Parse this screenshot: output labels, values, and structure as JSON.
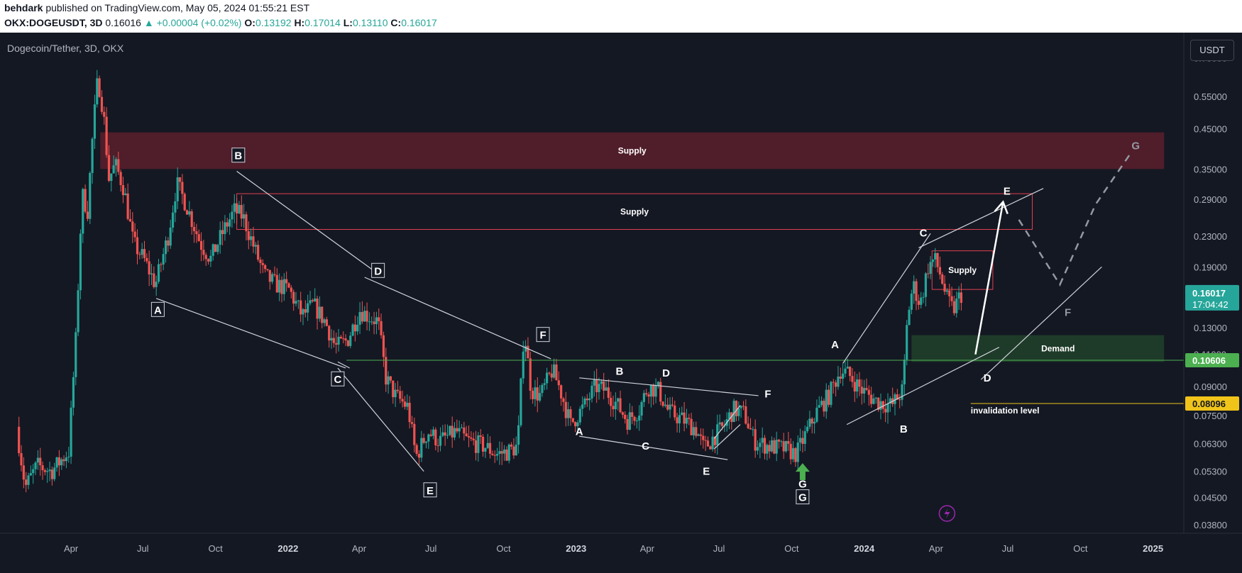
{
  "header": {
    "author": "behdark",
    "published": " published on TradingView.com, May 05, 2024 01:55:21 EST",
    "symbol": "OKX:DOGEUSDT, 3D",
    "price": "0.16016",
    "change": "▲ +0.00004 (+0.02%)",
    "o_label": "O:",
    "o_value": "0.13192",
    "h_label": "H:",
    "h_value": "0.17014",
    "l_label": "L:",
    "l_value": "0.13110",
    "c_label": "C:",
    "c_value": "0.16017"
  },
  "chart_title": "Dogecoin/Tether, 3D, OKX",
  "currency_button": "USDT",
  "colors": {
    "background": "#141823",
    "candle_up": "#26a69a",
    "candle_down": "#ef5350",
    "supply_zone": "#5a1f2b",
    "supply_border": "#e04050",
    "demand_zone": "#1f3f2a",
    "support_line": "#4caf50",
    "invalidation_line": "#f0c419",
    "price_badge": "#26a69a",
    "arrow_green": "#4caf50",
    "projection": "#9598a1"
  },
  "price_badge": {
    "price": "0.16017",
    "countdown": "17:04:42"
  },
  "level_badges": [
    {
      "value": 0.10606,
      "label": "0.10606",
      "bg": "#4caf50",
      "color": "#ffffff"
    },
    {
      "value": 0.08096,
      "label": "0.08096",
      "bg": "#f0c419",
      "color": "#131722"
    }
  ],
  "chart_data": {
    "type": "candlestick",
    "scale": "log",
    "ylim": [
      0.036,
      0.82
    ],
    "y_ticks": [
      "0.70000",
      "0.55000",
      "0.45000",
      "0.35000",
      "0.29000",
      "0.23000",
      "0.19000",
      "0.13000",
      "0.11000",
      "0.09000",
      "0.07500",
      "0.06300",
      "0.05300",
      "0.04500",
      "0.03800"
    ],
    "x_ticks": [
      {
        "label": "Apr",
        "date": "2021-04-01",
        "bold": false
      },
      {
        "label": "Jul",
        "date": "2021-07-01",
        "bold": false
      },
      {
        "label": "Oct",
        "date": "2021-10-01",
        "bold": false
      },
      {
        "label": "2022",
        "date": "2022-01-01",
        "bold": true
      },
      {
        "label": "Apr",
        "date": "2022-04-01",
        "bold": false
      },
      {
        "label": "Jul",
        "date": "2022-07-01",
        "bold": false
      },
      {
        "label": "Oct",
        "date": "2022-10-01",
        "bold": false
      },
      {
        "label": "2023",
        "date": "2023-01-01",
        "bold": true
      },
      {
        "label": "Apr",
        "date": "2023-04-01",
        "bold": false
      },
      {
        "label": "Jul",
        "date": "2023-07-01",
        "bold": false
      },
      {
        "label": "Oct",
        "date": "2023-10-01",
        "bold": false
      },
      {
        "label": "2024",
        "date": "2024-01-01",
        "bold": true
      },
      {
        "label": "Apr",
        "date": "2024-04-01",
        "bold": false
      },
      {
        "label": "Jul",
        "date": "2024-07-01",
        "bold": false
      },
      {
        "label": "Oct",
        "date": "2024-10-01",
        "bold": false
      },
      {
        "label": "2025",
        "date": "2025-01-01",
        "bold": true
      }
    ],
    "price_path": [
      [
        "2021-01-25",
        0.07
      ],
      [
        "2021-02-05",
        0.048
      ],
      [
        "2021-02-20",
        0.055
      ],
      [
        "2021-03-10",
        0.053
      ],
      [
        "2021-04-01",
        0.06
      ],
      [
        "2021-04-10",
        0.12
      ],
      [
        "2021-04-18",
        0.3
      ],
      [
        "2021-04-25",
        0.27
      ],
      [
        "2021-05-02",
        0.45
      ],
      [
        "2021-05-08",
        0.62
      ],
      [
        "2021-05-15",
        0.5
      ],
      [
        "2021-05-22",
        0.33
      ],
      [
        "2021-05-30",
        0.36
      ],
      [
        "2021-06-10",
        0.31
      ],
      [
        "2021-06-22",
        0.22
      ],
      [
        "2021-07-05",
        0.2
      ],
      [
        "2021-07-20",
        0.17
      ],
      [
        "2021-08-05",
        0.23
      ],
      [
        "2021-08-16",
        0.32
      ],
      [
        "2021-08-28",
        0.28
      ],
      [
        "2021-09-15",
        0.22
      ],
      [
        "2021-09-28",
        0.2
      ],
      [
        "2021-10-15",
        0.24
      ],
      [
        "2021-10-28",
        0.27
      ],
      [
        "2021-11-08",
        0.26
      ],
      [
        "2021-11-20",
        0.22
      ],
      [
        "2021-12-05",
        0.18
      ],
      [
        "2021-12-20",
        0.17
      ],
      [
        "2022-01-05",
        0.165
      ],
      [
        "2022-01-22",
        0.14
      ],
      [
        "2022-02-05",
        0.15
      ],
      [
        "2022-02-20",
        0.135
      ],
      [
        "2022-03-05",
        0.115
      ],
      [
        "2022-03-20",
        0.12
      ],
      [
        "2022-04-05",
        0.145
      ],
      [
        "2022-04-15",
        0.14
      ],
      [
        "2022-04-28",
        0.135
      ],
      [
        "2022-05-08",
        0.095
      ],
      [
        "2022-05-20",
        0.085
      ],
      [
        "2022-06-05",
        0.079
      ],
      [
        "2022-06-15",
        0.058
      ],
      [
        "2022-06-30",
        0.068
      ],
      [
        "2022-07-15",
        0.064
      ],
      [
        "2022-08-05",
        0.068
      ],
      [
        "2022-08-20",
        0.064
      ],
      [
        "2022-09-10",
        0.062
      ],
      [
        "2022-09-25",
        0.059
      ],
      [
        "2022-10-10",
        0.06
      ],
      [
        "2022-10-22",
        0.062
      ],
      [
        "2022-10-30",
        0.13
      ],
      [
        "2022-11-08",
        0.088
      ],
      [
        "2022-11-20",
        0.085
      ],
      [
        "2022-12-05",
        0.1
      ],
      [
        "2022-12-15",
        0.088
      ],
      [
        "2022-12-28",
        0.071
      ],
      [
        "2023-01-15",
        0.08
      ],
      [
        "2023-01-28",
        0.09
      ],
      [
        "2023-02-10",
        0.088
      ],
      [
        "2023-02-22",
        0.082
      ],
      [
        "2023-03-10",
        0.073
      ],
      [
        "2023-03-25",
        0.078
      ],
      [
        "2023-04-05",
        0.09
      ],
      [
        "2023-04-18",
        0.088
      ],
      [
        "2023-05-01",
        0.077
      ],
      [
        "2023-05-20",
        0.073
      ],
      [
        "2023-06-05",
        0.069
      ],
      [
        "2023-06-15",
        0.061
      ],
      [
        "2023-06-28",
        0.066
      ],
      [
        "2023-07-10",
        0.07
      ],
      [
        "2023-07-22",
        0.078
      ],
      [
        "2023-08-05",
        0.076
      ],
      [
        "2023-08-18",
        0.064
      ],
      [
        "2023-09-05",
        0.062
      ],
      [
        "2023-09-25",
        0.061
      ],
      [
        "2023-10-10",
        0.059
      ],
      [
        "2023-10-22",
        0.067
      ],
      [
        "2023-11-05",
        0.077
      ],
      [
        "2023-11-20",
        0.085
      ],
      [
        "2023-12-05",
        0.1
      ],
      [
        "2023-12-15",
        0.097
      ],
      [
        "2024-01-01",
        0.088
      ],
      [
        "2024-01-20",
        0.082
      ],
      [
        "2024-02-08",
        0.08
      ],
      [
        "2024-02-22",
        0.088
      ],
      [
        "2024-02-28",
        0.14
      ],
      [
        "2024-03-06",
        0.17
      ],
      [
        "2024-03-15",
        0.15
      ],
      [
        "2024-03-25",
        0.19
      ],
      [
        "2024-04-02",
        0.2
      ],
      [
        "2024-04-10",
        0.18
      ],
      [
        "2024-04-18",
        0.155
      ],
      [
        "2024-04-26",
        0.145
      ],
      [
        "2024-05-05",
        0.16
      ]
    ],
    "zones": [
      {
        "type": "supply",
        "label": "Supply",
        "from": "2021-05-08",
        "to": "2025-01-15",
        "low": 0.35,
        "high": 0.44,
        "fill": "#5a1f2b",
        "stroke": "none",
        "opacity": 0.85
      },
      {
        "type": "supply",
        "label": "Supply",
        "from": "2021-10-28",
        "to": "2024-08-01",
        "low": 0.24,
        "high": 0.3,
        "fill": "none",
        "stroke": "#e04050",
        "opacity": 1
      },
      {
        "type": "supply",
        "label": "Supply",
        "from": "2024-03-27",
        "to": "2024-06-12",
        "low": 0.165,
        "high": 0.21,
        "fill": "none",
        "stroke": "#e04050",
        "opacity": 1
      },
      {
        "type": "demand",
        "label": "Demand",
        "from": "2024-03-01",
        "to": "2025-01-15",
        "low": 0.105,
        "high": 0.124,
        "fill": "#1f3f2a",
        "stroke": "none",
        "opacity": 0.9
      }
    ],
    "levels": [
      {
        "value": 0.10606,
        "label": "",
        "color": "#4caf50",
        "from": "2022-03-16"
      },
      {
        "value": 0.08096,
        "label": "invalidation level",
        "color": "#f0c419",
        "from": "2024-05-15"
      }
    ],
    "wave_labels": [
      {
        "text": "B",
        "date": "2021-10-30",
        "price": 0.38,
        "boxed": true
      },
      {
        "text": "A",
        "date": "2021-07-20",
        "price": 0.145,
        "boxed": true
      },
      {
        "text": "D",
        "date": "2022-04-25",
        "price": 0.185,
        "boxed": true
      },
      {
        "text": "C",
        "date": "2022-03-05",
        "price": 0.094,
        "boxed": true
      },
      {
        "text": "E",
        "date": "2022-06-30",
        "price": 0.047,
        "boxed": true
      },
      {
        "text": "F",
        "date": "2022-11-20",
        "price": 0.124,
        "boxed": true
      },
      {
        "text": "G",
        "date": "2023-10-15",
        "price": 0.045,
        "boxed": true
      },
      {
        "text": "A",
        "date": "2023-01-05",
        "price": 0.068,
        "boxed": false
      },
      {
        "text": "B",
        "date": "2023-02-25",
        "price": 0.099,
        "boxed": false
      },
      {
        "text": "C",
        "date": "2023-03-30",
        "price": 0.062,
        "boxed": false
      },
      {
        "text": "D",
        "date": "2023-04-25",
        "price": 0.098,
        "boxed": false
      },
      {
        "text": "E",
        "date": "2023-06-15",
        "price": 0.053,
        "boxed": false
      },
      {
        "text": "F",
        "date": "2023-09-01",
        "price": 0.086,
        "boxed": false
      },
      {
        "text": "G",
        "date": "2023-10-15",
        "price": 0.049,
        "boxed": false
      },
      {
        "text": "A",
        "date": "2023-11-25",
        "price": 0.117,
        "boxed": false
      },
      {
        "text": "B",
        "date": "2024-02-20",
        "price": 0.069,
        "boxed": false
      },
      {
        "text": "C",
        "date": "2024-03-16",
        "price": 0.235,
        "boxed": false
      },
      {
        "text": "D",
        "date": "2024-06-05",
        "price": 0.095,
        "boxed": false
      },
      {
        "text": "E",
        "date": "2024-06-30",
        "price": 0.305,
        "boxed": false
      },
      {
        "text": "F",
        "date": "2024-09-15",
        "price": 0.143,
        "boxed": false,
        "muted": true
      },
      {
        "text": "G",
        "date": "2024-12-10",
        "price": 0.405,
        "boxed": false,
        "muted": true
      }
    ],
    "trendlines": [
      [
        "2021-07-18",
        0.156,
        "2022-03-15",
        0.101
      ],
      [
        "2021-10-28",
        0.345,
        "2022-04-28",
        0.18
      ],
      [
        "2022-03-05",
        0.101,
        "2022-06-22",
        0.053
      ],
      [
        "2022-03-05",
        0.105,
        "2022-03-20",
        0.101
      ],
      [
        "2022-04-08",
        0.178,
        "2022-11-30",
        0.107
      ],
      [
        "2023-01-05",
        0.095,
        "2023-08-20",
        0.085
      ],
      [
        "2023-01-05",
        0.066,
        "2023-07-12",
        0.057
      ],
      [
        "2023-06-25",
        0.065,
        "2023-07-28",
        0.08
      ],
      [
        "2023-06-25",
        0.061,
        "2023-07-28",
        0.071
      ],
      [
        "2023-12-05",
        0.104,
        "2024-03-25",
        0.234
      ],
      [
        "2024-03-10",
        0.214,
        "2024-08-15",
        0.31
      ],
      [
        "2023-12-10",
        0.071,
        "2024-06-20",
        0.115
      ],
      [
        "2024-05-28",
        0.094,
        "2024-10-28",
        0.19
      ]
    ],
    "white_arrow": [
      "2024-05-21",
      0.11,
      "2024-06-25",
      0.285
    ],
    "projection_path": [
      [
        "2024-07-15",
        0.255
      ],
      [
        "2024-09-05",
        0.17
      ],
      [
        "2024-10-20",
        0.28
      ],
      [
        "2024-12-05",
        0.39
      ]
    ],
    "green_arrow": {
      "date": "2023-10-15",
      "price": 0.0515
    },
    "watermark_icon": "lightning-icon"
  }
}
